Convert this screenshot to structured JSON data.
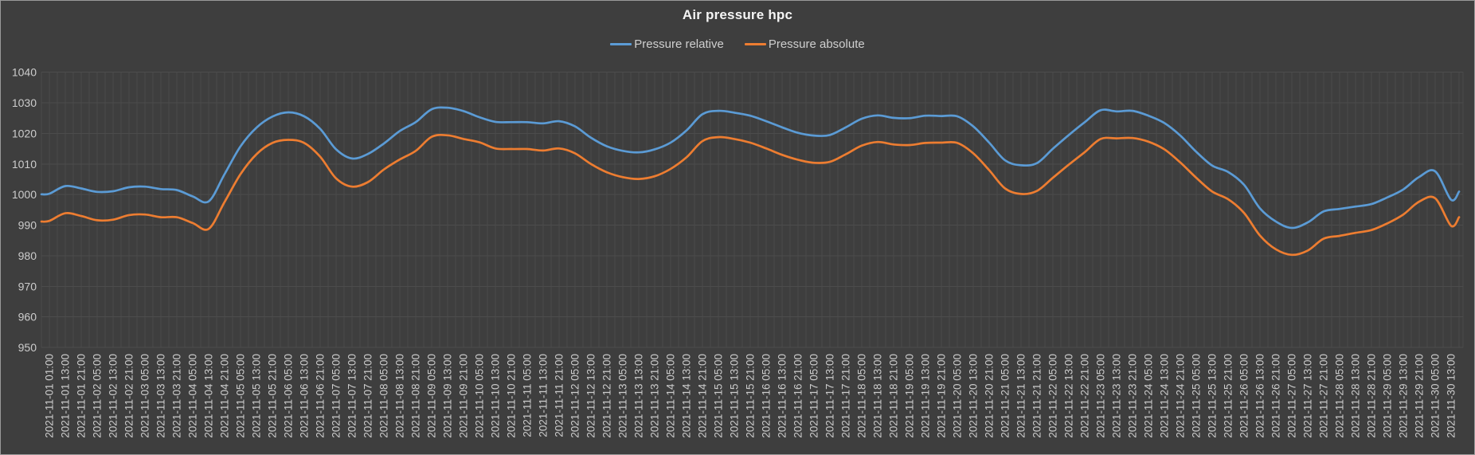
{
  "chart": {
    "title": "Air pressure hpc",
    "legend": [
      {
        "label": "Pressure relative",
        "color": "#5B9BD5"
      },
      {
        "label": "Pressure absolute",
        "color": "#ED7D31"
      }
    ]
  },
  "colors": {
    "background": "#3E3E3E",
    "frame_border": "#9A9A9A",
    "gridline": "#4C4C4C",
    "axis_text": "#CCCCCC",
    "title_text": "#F5F5F5",
    "legend_text": "#CFCFCF"
  },
  "chart_data": {
    "type": "line",
    "title": "Air pressure hpc",
    "ylabel": "",
    "xlabel": "",
    "ylim": [
      950,
      1040
    ],
    "y_ticks": [
      950,
      960,
      970,
      980,
      990,
      1000,
      1010,
      1020,
      1030,
      1040
    ],
    "grid": true,
    "legend_position": "top",
    "x_labels": [
      "2021-11-01 01:00",
      "2021-11-01 13:00",
      "2021-11-01 21:00",
      "2021-11-02 05:00",
      "2021-11-02 13:00",
      "2021-11-02 21:00",
      "2021-11-03 05:00",
      "2021-11-03 13:00",
      "2021-11-03 21:00",
      "2021-11-04 05:00",
      "2021-11-04 13:00",
      "2021-11-04 21:00",
      "2021-11-05 05:00",
      "2021-11-05 13:00",
      "2021-11-05 21:00",
      "2021-11-06 05:00",
      "2021-11-06 13:00",
      "2021-11-06 21:00",
      "2021-11-07 05:00",
      "2021-11-07 13:00",
      "2021-11-07 21:00",
      "2021-11-08 05:00",
      "2021-11-08 13:00",
      "2021-11-08 21:00",
      "2021-11-09 05:00",
      "2021-11-09 13:00",
      "2021-11-09 21:00",
      "2021-11-10 05:00",
      "2021-11-10 13:00",
      "2021-11-10 21:00",
      "2021-11-11 05:00",
      "2021-11-11 13:00",
      "2021-11-11 21:00",
      "2021-11-12 05:00",
      "2021-11-12 13:00",
      "2021-11-12 21:00",
      "2021-11-13 05:00",
      "2021-11-13 13:00",
      "2021-11-13 21:00",
      "2021-11-14 05:00",
      "2021-11-14 13:00",
      "2021-11-14 21:00",
      "2021-11-15 05:00",
      "2021-11-15 13:00",
      "2021-11-15 21:00",
      "2021-11-16 05:00",
      "2021-11-16 13:00",
      "2021-11-16 21:00",
      "2021-11-17 05:00",
      "2021-11-17 13:00",
      "2021-11-17 21:00",
      "2021-11-18 05:00",
      "2021-11-18 13:00",
      "2021-11-18 21:00",
      "2021-11-19 05:00",
      "2021-11-19 13:00",
      "2021-11-19 21:00",
      "2021-11-20 05:00",
      "2021-11-20 13:00",
      "2021-11-20 21:00",
      "2021-11-21 05:00",
      "2021-11-21 13:00",
      "2021-11-21 21:00",
      "2021-11-22 05:00",
      "2021-11-22 13:00",
      "2021-11-22 21:00",
      "2021-11-23 05:00",
      "2021-11-23 13:00",
      "2021-11-23 21:00",
      "2021-11-24 05:00",
      "2021-11-24 13:00",
      "2021-11-24 21:00",
      "2021-11-25 05:00",
      "2021-11-25 13:00",
      "2021-11-25 21:00",
      "2021-11-26 05:00",
      "2021-11-26 13:00",
      "2021-11-26 21:00",
      "2021-11-27 05:00",
      "2021-11-27 13:00",
      "2021-11-27 21:00",
      "2021-11-28 05:00",
      "2021-11-28 13:00",
      "2021-11-28 21:00",
      "2021-11-29 05:00",
      "2021-11-29 13:00",
      "2021-11-29 21:00",
      "2021-11-30 05:00",
      "2021-11-30 13:00"
    ],
    "series": [
      {
        "name": "Pressure relative",
        "color": "#5B9BD5",
        "edge_start": 1000.1,
        "values": [
          1000.3,
          1002.8,
          1002.0,
          1000.9,
          1001.1,
          1002.4,
          1002.6,
          1001.8,
          1001.5,
          999.4,
          997.8,
          1006.7,
          1015.8,
          1021.9,
          1025.5,
          1026.9,
          1025.6,
          1021.5,
          1014.8,
          1011.8,
          1013.3,
          1016.7,
          1020.8,
          1023.7,
          1027.9,
          1028.4,
          1027.3,
          1025.3,
          1023.8,
          1023.7,
          1023.7,
          1023.3,
          1024.0,
          1022.3,
          1018.6,
          1015.8,
          1014.3,
          1013.8,
          1014.8,
          1017.0,
          1021.0,
          1026.3,
          1027.4,
          1026.8,
          1025.8,
          1024.0,
          1022.0,
          1020.2,
          1019.3,
          1019.5,
          1022.0,
          1024.8,
          1025.9,
          1025.1,
          1025.0,
          1025.8,
          1025.7,
          1025.6,
          1022.3,
          1017.0,
          1011.2,
          1009.6,
          1010.3,
          1015.0,
          1019.5,
          1023.7,
          1027.6,
          1027.2,
          1027.4,
          1025.8,
          1023.4,
          1019.3,
          1014.0,
          1009.5,
          1007.4,
          1003.2,
          995.5,
          991.2,
          989.1,
          990.9,
          994.5,
          995.3,
          996.1,
          996.9,
          999.1,
          1001.7,
          1005.8,
          1007.6,
          998.3
        ],
        "edge_end": 1001.0
      },
      {
        "name": "Pressure absolute",
        "color": "#ED7D31",
        "edge_start": 991.2,
        "values": [
          991.4,
          993.9,
          993.0,
          991.6,
          991.8,
          993.3,
          993.5,
          992.6,
          992.6,
          990.7,
          988.8,
          997.6,
          1006.7,
          1013.2,
          1016.9,
          1017.9,
          1016.9,
          1012.4,
          1005.3,
          1002.6,
          1004.1,
          1008.2,
          1011.5,
          1014.3,
          1018.9,
          1019.4,
          1018.2,
          1017.1,
          1015.1,
          1014.9,
          1014.9,
          1014.4,
          1015.1,
          1013.5,
          1010.0,
          1007.3,
          1005.7,
          1005.1,
          1006.0,
          1008.4,
          1012.2,
          1017.5,
          1018.8,
          1018.2,
          1017.0,
          1015.1,
          1013.0,
          1011.4,
          1010.4,
          1010.7,
          1013.2,
          1016.0,
          1017.2,
          1016.4,
          1016.2,
          1016.9,
          1017.0,
          1016.9,
          1013.5,
          1008.0,
          1002.0,
          1000.2,
          1001.2,
          1005.5,
          1009.8,
          1013.9,
          1018.2,
          1018.4,
          1018.5,
          1017.3,
          1014.8,
          1010.5,
          1005.5,
          1001.0,
          998.5,
          994.0,
          986.6,
          982.1,
          980.3,
          981.7,
          985.6,
          986.5,
          987.5,
          988.4,
          990.6,
          993.5,
          997.7,
          998.8,
          989.8
        ],
        "edge_end": 992.6
      }
    ]
  }
}
